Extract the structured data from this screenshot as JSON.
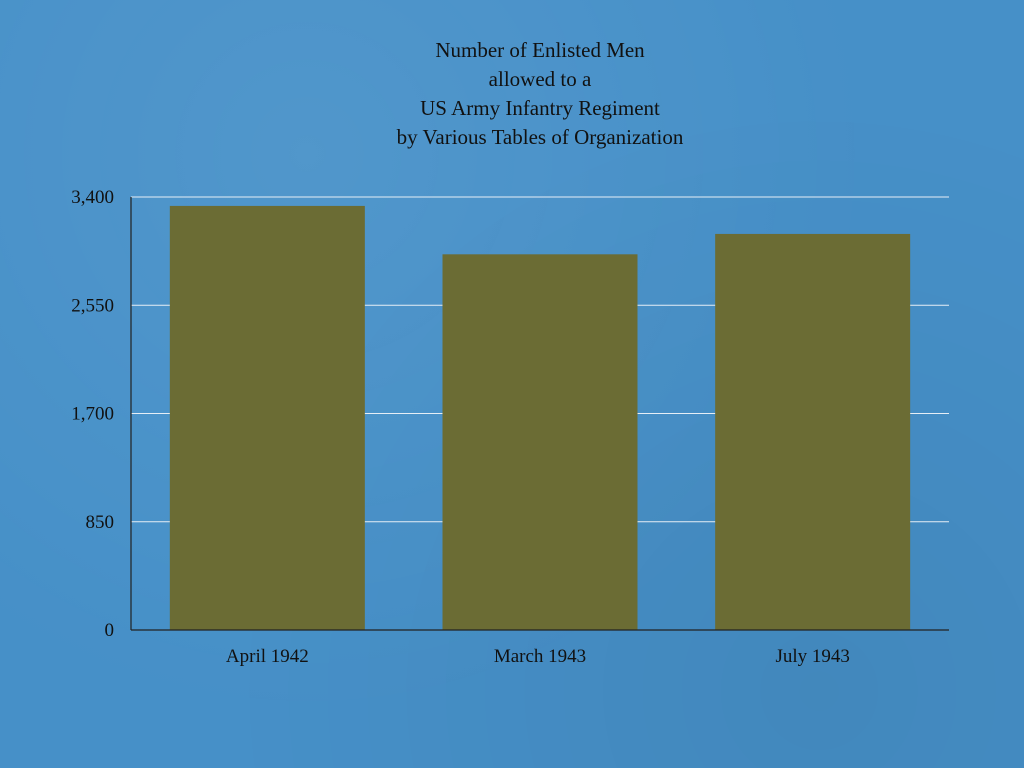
{
  "chart_data": {
    "type": "bar",
    "title_lines": [
      "Number of Enlisted Men",
      "allowed to a",
      "US Army Infantry Regiment",
      "by Various Tables of Organization"
    ],
    "categories": [
      "April 1942",
      "March 1943",
      "July 1943"
    ],
    "values": [
      3330,
      2950,
      3110
    ],
    "yticks": [
      0,
      850,
      1700,
      2550,
      3400
    ],
    "ytick_labels": [
      "0",
      "850",
      "1,700",
      "2,550",
      "3,400"
    ],
    "ylim": [
      0,
      3400
    ],
    "xlabel": "",
    "ylabel": "",
    "grid": true,
    "legend": "none",
    "colors": {
      "bar": "#6b6c34",
      "grid": "#e6eef6",
      "axis": "#222222",
      "background": "#4690c8"
    }
  }
}
